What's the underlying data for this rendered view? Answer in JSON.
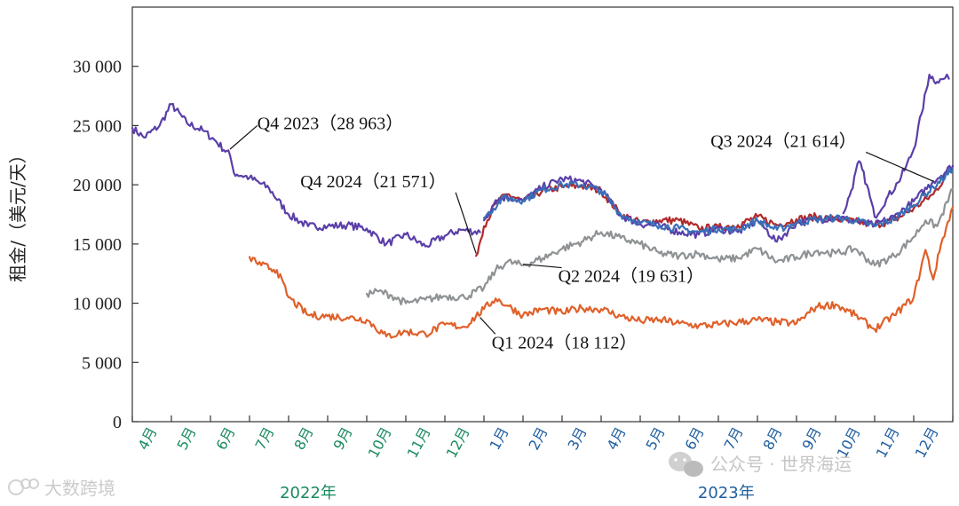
{
  "chart_data": {
    "type": "line",
    "ylabel": "租金/（美元/天）",
    "ylim": [
      0,
      35000
    ],
    "yticks": [
      0,
      5000,
      10000,
      15000,
      20000,
      25000,
      30000
    ],
    "ytick_labels": [
      "0",
      "5 000",
      "10 000",
      "15 000",
      "20 000",
      "25 000",
      "30 000"
    ],
    "xlim": [
      0,
      21
    ],
    "x_categories": [
      "4月",
      "5月",
      "6月",
      "7月",
      "8月",
      "9月",
      "10月",
      "11月",
      "12月",
      "1月",
      "2月",
      "3月",
      "4月",
      "5月",
      "6月",
      "7月",
      "8月",
      "9月",
      "10月",
      "11月",
      "12月"
    ],
    "x_category_colors": [
      "#1a8a5e",
      "#1a8a5e",
      "#1a8a5e",
      "#1a8a5e",
      "#1a8a5e",
      "#1a8a5e",
      "#1a8a5e",
      "#1a8a5e",
      "#1a8a5e",
      "#1f5fa0",
      "#1f5fa0",
      "#1f5fa0",
      "#1f5fa0",
      "#1f5fa0",
      "#1f5fa0",
      "#1f5fa0",
      "#1f5fa0",
      "#1f5fa0",
      "#1f5fa0",
      "#1f5fa0",
      "#1f5fa0"
    ],
    "year_labels": [
      {
        "label": "2022年",
        "center_x": 4.5,
        "color": "#1a8a5e"
      },
      {
        "label": "2023年",
        "center_x": 15.2,
        "color": "#1f5fa0"
      }
    ],
    "series": [
      {
        "color": "#5b3fa8",
        "x": [
          0,
          0.3,
          0.7,
          1.0,
          1.4,
          1.8,
          2.1,
          2.5,
          2.6,
          3.0,
          3.5,
          4.0,
          4.5,
          5.0,
          5.5,
          6.0,
          6.5,
          7.0,
          7.5,
          8.0,
          8.4,
          8.9
        ],
        "y": [
          24800,
          24000,
          25000,
          26800,
          25200,
          24600,
          23800,
          22500,
          21000,
          20600,
          19700,
          17500,
          16500,
          16500,
          16600,
          16300,
          15000,
          15800,
          14800,
          15700,
          16200,
          16000
        ]
      },
      {
        "color": "#5b3fa8",
        "x": [
          18.2,
          18.4,
          18.6,
          18.8,
          19.0,
          19.3,
          19.6,
          19.8,
          20.0,
          20.2,
          20.4,
          20.6,
          20.8,
          20.9
        ],
        "y": [
          17600,
          19500,
          22000,
          20000,
          17300,
          18800,
          20200,
          21500,
          23000,
          26000,
          29300,
          28700,
          29000,
          28963
        ]
      },
      {
        "color": "#b22a2a",
        "x": [
          8.8,
          9.0,
          9.3,
          9.6,
          10.0,
          10.5,
          11.0,
          11.5,
          12.0,
          12.5,
          13.0,
          13.5,
          14.0,
          14.5,
          15.0,
          15.5,
          16.0,
          16.5,
          17.0,
          17.5,
          18.0,
          18.5,
          19.0,
          19.5,
          20.0,
          20.5,
          21.0
        ],
        "y": [
          14000,
          16500,
          18400,
          19200,
          18600,
          19500,
          19800,
          19900,
          19500,
          17500,
          16800,
          17000,
          17000,
          16300,
          16400,
          16600,
          17300,
          16600,
          17100,
          17300,
          17100,
          16900,
          16600,
          17000,
          18000,
          19200,
          21571
        ]
      },
      {
        "color": "#5b3fa8",
        "x": [
          9.0,
          9.3,
          9.6,
          10.0,
          10.5,
          11.0,
          11.5,
          12.0,
          12.5,
          13.0,
          13.5,
          14.0,
          14.5,
          15.0,
          15.5,
          16.0,
          16.5,
          17.0,
          17.5,
          18.0,
          18.5,
          19.0,
          19.5,
          20.0,
          20.5,
          21.0
        ],
        "y": [
          17000,
          18700,
          19000,
          18600,
          19800,
          20500,
          20300,
          19600,
          17400,
          16700,
          16500,
          16000,
          15800,
          16300,
          16000,
          17000,
          15200,
          16800,
          17000,
          17300,
          16900,
          16600,
          17300,
          18600,
          20300,
          21614
        ]
      },
      {
        "color": "#3a6fb8",
        "x": [
          9.0,
          9.5,
          10.0,
          10.5,
          11.0,
          11.5,
          12.0,
          12.5,
          13.0,
          13.5,
          14.0,
          14.5,
          15.0,
          15.5,
          16.0,
          16.5,
          17.0,
          17.5,
          18.0,
          18.5,
          19.0,
          19.5,
          20.0,
          20.5,
          21.0
        ],
        "y": [
          17200,
          18900,
          18700,
          19600,
          20000,
          20000,
          19500,
          17500,
          16800,
          16600,
          16300,
          16000,
          16300,
          16200,
          17000,
          16200,
          16800,
          17100,
          17200,
          17000,
          16500,
          17100,
          18300,
          19800,
          21300
        ]
      },
      {
        "color": "#8e9294",
        "x": [
          6.0,
          6.3,
          6.6,
          7.0,
          7.5,
          8.0,
          8.5,
          9.0,
          9.3,
          9.6,
          10.0,
          10.5,
          11.0,
          11.5,
          12.0,
          12.5,
          13.0,
          13.5,
          14.0,
          14.5,
          15.0,
          15.5,
          16.0,
          16.5,
          17.0,
          17.5,
          18.0,
          18.5,
          19.0,
          19.5,
          20.0,
          20.3,
          20.6,
          21.0
        ],
        "y": [
          10800,
          11000,
          10700,
          10000,
          10300,
          10600,
          10500,
          11300,
          12800,
          13500,
          13200,
          13800,
          14600,
          15200,
          16000,
          15500,
          15000,
          14200,
          14000,
          14200,
          13700,
          13800,
          14600,
          13500,
          13900,
          14400,
          14200,
          14600,
          13200,
          14000,
          15600,
          17000,
          16500,
          19631
        ]
      },
      {
        "color": "#e0602a",
        "x": [
          3.0,
          3.3,
          3.7,
          4.0,
          4.5,
          5.0,
          5.5,
          6.0,
          6.5,
          7.0,
          7.5,
          8.0,
          8.5,
          9.0,
          9.3,
          9.6,
          10.0,
          10.5,
          11.0,
          11.5,
          12.0,
          12.5,
          13.0,
          13.5,
          14.0,
          14.5,
          15.0,
          15.5,
          16.0,
          16.5,
          17.0,
          17.5,
          18.0,
          18.5,
          19.0,
          19.5,
          20.0,
          20.3,
          20.5,
          20.7,
          21.0
        ],
        "y": [
          13900,
          13200,
          12800,
          10500,
          9000,
          8900,
          8800,
          8600,
          7200,
          7600,
          7400,
          8200,
          8000,
          9500,
          10400,
          9800,
          9000,
          9500,
          9200,
          9600,
          9500,
          8900,
          8500,
          8600,
          8300,
          8100,
          8200,
          8400,
          8600,
          8400,
          8300,
          9700,
          9900,
          9000,
          7800,
          9000,
          10500,
          14500,
          12000,
          15000,
          18112
        ]
      }
    ],
    "annotations": [
      {
        "text": "Q4 2023（28 963）",
        "label_x": 3.2,
        "label_y": 24700,
        "pointer_x": 2.5,
        "pointer_y": 23000
      },
      {
        "text": "Q4 2024（21 571）",
        "label_x": 4.3,
        "label_y": 19800,
        "pointer_x": 8.8,
        "pointer_y": 14200
      },
      {
        "text": "Q3 2024（21 614）",
        "label_x": 14.8,
        "label_y": 23200,
        "pointer_x": 20.5,
        "pointer_y": 20300
      },
      {
        "text": "Q2 2024（19 631）",
        "label_x": 10.9,
        "label_y": 11800,
        "pointer_x": 10.0,
        "pointer_y": 13300
      },
      {
        "text": "Q1 2024（18 112）",
        "label_x": 9.2,
        "label_y": 6200,
        "pointer_x": 8.9,
        "pointer_y": 8800
      }
    ]
  },
  "watermarks": {
    "left": "大数跨境",
    "right": "公众号 · 世界海运"
  }
}
